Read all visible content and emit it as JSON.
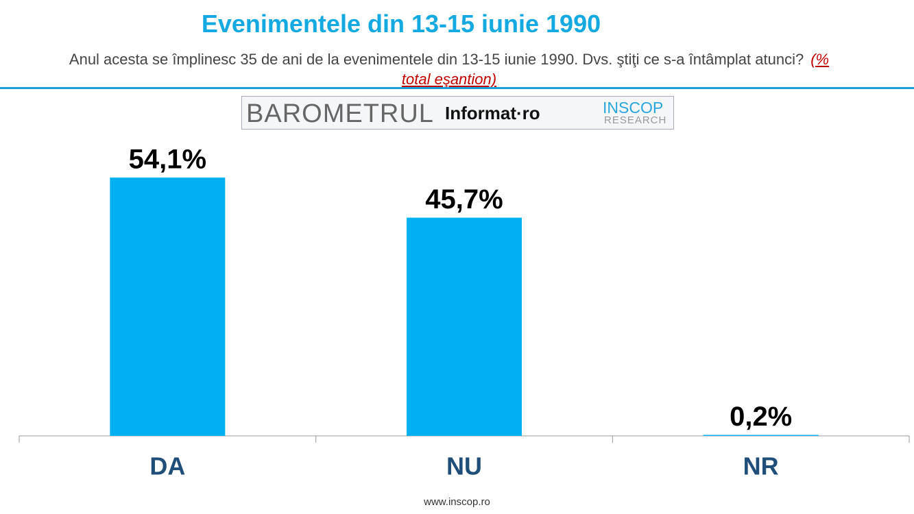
{
  "chart_data": {
    "type": "bar",
    "title": "Evenimentele din 13-15 iunie 1990",
    "subtitle": "Anul acesta se împlinesc 35 de ani de la evenimentele din 13-15 iunie 1990. Dvs. ştiţi ce s-a întâmplat atunci?",
    "note": "(% total eşantion)",
    "logo": {
      "barometer": "BAROMETRUL",
      "partner": "Informat·ro",
      "brand": "INSCOP",
      "brand_sub": "RESEARCH"
    },
    "footer": "www.inscop.ro",
    "categories": [
      "DA",
      "NU",
      "NR"
    ],
    "values": [
      54.1,
      45.7,
      0.2
    ],
    "value_labels": [
      "54,1%",
      "45,7%",
      "0,2%"
    ],
    "color": "#00b0f0",
    "ylim": [
      0,
      60
    ]
  }
}
